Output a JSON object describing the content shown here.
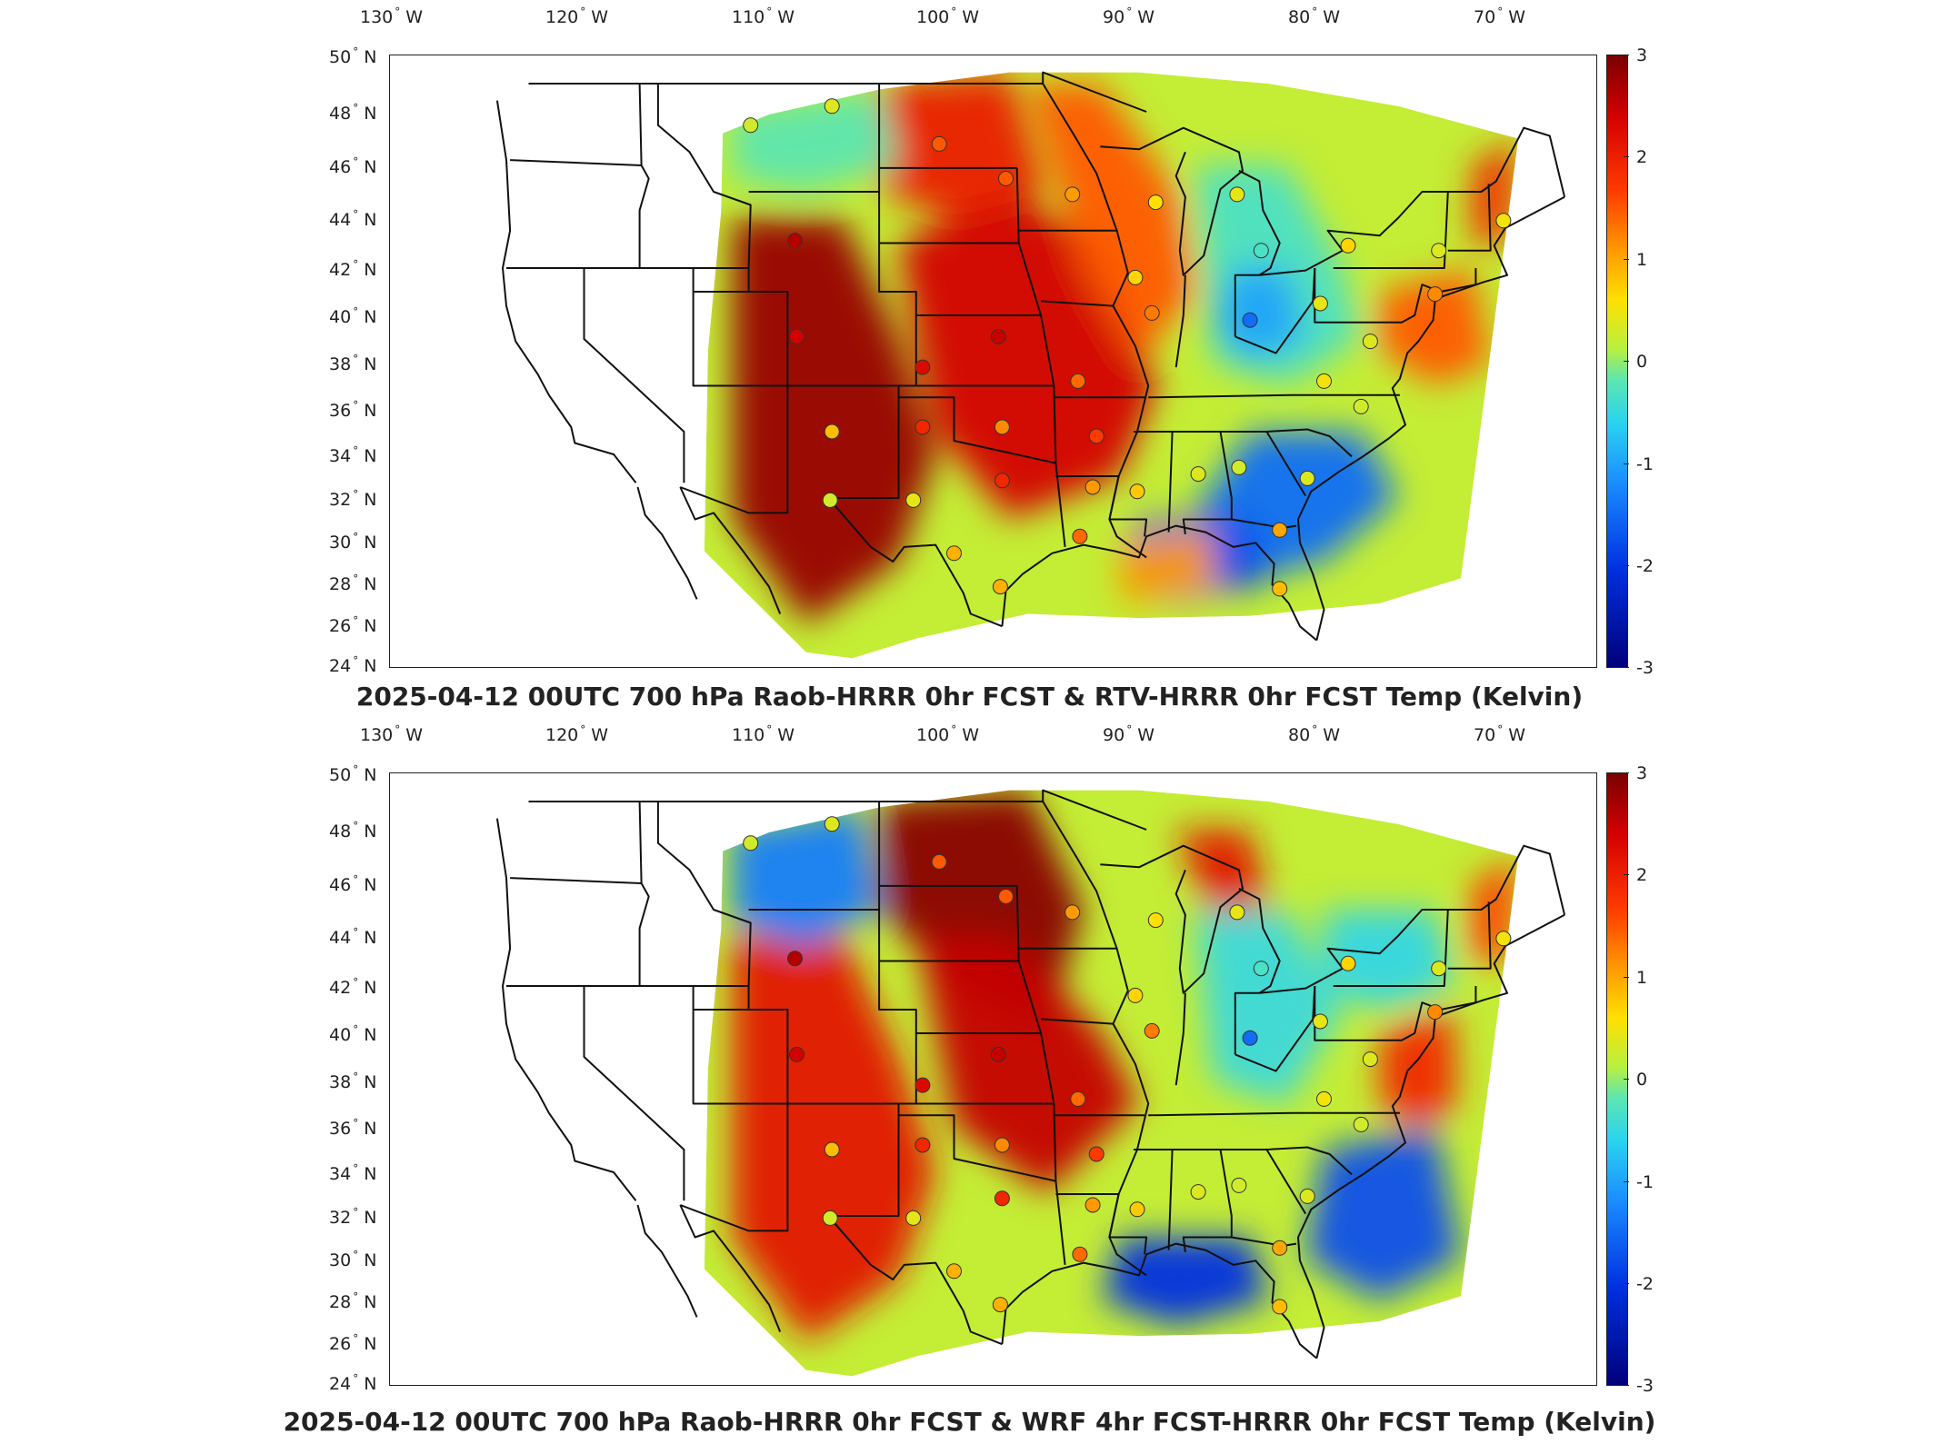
{
  "lon_ticks": [
    "130",
    "120",
    "110",
    "100",
    "90",
    "80",
    "70"
  ],
  "lon_hemisphere": "W",
  "lat_ticks": [
    "50",
    "48",
    "46",
    "44",
    "42",
    "40",
    "38",
    "36",
    "34",
    "32",
    "30",
    "28",
    "26",
    "24"
  ],
  "lat_hemisphere": "N",
  "degree_symbol": "°",
  "colorbar": {
    "ticks": [
      "3",
      "2",
      "1",
      "0",
      "-1",
      "-2",
      "-3"
    ],
    "range": [
      -3,
      3
    ],
    "colormap": "jet",
    "colors": [
      "#00007a",
      "#0030e0",
      "#1a8cff",
      "#2bd3f0",
      "#5de6b0",
      "#b8f040",
      "#ffe000",
      "#ff9a00",
      "#ff3a00",
      "#d40000",
      "#7a0000"
    ]
  },
  "panels": [
    {
      "title": "2025-04-12 00UTC 700 hPa Raob-HRRR 0hr FCST & RTV-HRRR 0hr FCST Temp (Kelvin)",
      "stations": [
        {
          "lon": -111.0,
          "lat": 47.5,
          "v": 0.2
        },
        {
          "lon": -106.6,
          "lat": 48.2,
          "v": 0.3
        },
        {
          "lon": -100.8,
          "lat": 46.8,
          "v": 1.6
        },
        {
          "lon": -97.2,
          "lat": 45.5,
          "v": 1.6
        },
        {
          "lon": -93.6,
          "lat": 44.9,
          "v": 1.2
        },
        {
          "lon": -89.1,
          "lat": 44.6,
          "v": 0.6
        },
        {
          "lon": -84.7,
          "lat": 44.9,
          "v": 0.4
        },
        {
          "lon": -83.4,
          "lat": 42.7,
          "v": -0.8
        },
        {
          "lon": -78.7,
          "lat": 42.9,
          "v": 0.7
        },
        {
          "lon": -73.8,
          "lat": 42.7,
          "v": 0.3
        },
        {
          "lon": -70.3,
          "lat": 43.9,
          "v": 0.5
        },
        {
          "lon": -108.6,
          "lat": 43.1,
          "v": 2.6
        },
        {
          "lon": -108.5,
          "lat": 39.1,
          "v": 2.4
        },
        {
          "lon": -101.7,
          "lat": 37.8,
          "v": 2.3
        },
        {
          "lon": -97.6,
          "lat": 39.1,
          "v": 2.5
        },
        {
          "lon": -93.3,
          "lat": 37.2,
          "v": 1.5
        },
        {
          "lon": -89.3,
          "lat": 40.1,
          "v": 1.4
        },
        {
          "lon": -90.2,
          "lat": 41.6,
          "v": 0.7
        },
        {
          "lon": -84.0,
          "lat": 39.8,
          "v": -2.0
        },
        {
          "lon": -80.2,
          "lat": 40.5,
          "v": 0.4
        },
        {
          "lon": -77.5,
          "lat": 38.9,
          "v": 0.3
        },
        {
          "lon": -74.0,
          "lat": 40.9,
          "v": 1.3
        },
        {
          "lon": -80.0,
          "lat": 37.2,
          "v": 0.5
        },
        {
          "lon": -78.0,
          "lat": 36.1,
          "v": 0.2
        },
        {
          "lon": -106.6,
          "lat": 35.0,
          "v": 0.9
        },
        {
          "lon": -101.7,
          "lat": 35.2,
          "v": 2.0
        },
        {
          "lon": -97.4,
          "lat": 35.2,
          "v": 1.3
        },
        {
          "lon": -92.3,
          "lat": 34.8,
          "v": 1.8
        },
        {
          "lon": -97.4,
          "lat": 32.8,
          "v": 2.0
        },
        {
          "lon": -106.7,
          "lat": 31.9,
          "v": 0.2
        },
        {
          "lon": -102.2,
          "lat": 31.9,
          "v": 0.4
        },
        {
          "lon": -90.1,
          "lat": 32.3,
          "v": 0.8
        },
        {
          "lon": -86.8,
          "lat": 33.1,
          "v": 0.3
        },
        {
          "lon": -84.6,
          "lat": 33.4,
          "v": 0.2
        },
        {
          "lon": -80.9,
          "lat": 32.9,
          "v": 0.3
        },
        {
          "lon": -92.5,
          "lat": 32.5,
          "v": 1.2
        },
        {
          "lon": -93.2,
          "lat": 30.2,
          "v": 1.5
        },
        {
          "lon": -100.0,
          "lat": 29.4,
          "v": 1.0
        },
        {
          "lon": -97.5,
          "lat": 27.8,
          "v": 1.0
        },
        {
          "lon": -82.4,
          "lat": 30.5,
          "v": 1.1
        },
        {
          "lon": -82.4,
          "lat": 27.7,
          "v": 0.9
        }
      ]
    },
    {
      "title": "2025-04-12 00UTC 700 hPa Raob-HRRR 0hr FCST & WRF 4hr FCST-HRRR 0hr FCST Temp (Kelvin)",
      "stations": [
        {
          "lon": -111.0,
          "lat": 47.5,
          "v": 0.2
        },
        {
          "lon": -106.6,
          "lat": 48.2,
          "v": 0.3
        },
        {
          "lon": -100.8,
          "lat": 46.8,
          "v": 1.6
        },
        {
          "lon": -97.2,
          "lat": 45.5,
          "v": 1.6
        },
        {
          "lon": -93.6,
          "lat": 44.9,
          "v": 1.2
        },
        {
          "lon": -89.1,
          "lat": 44.6,
          "v": 0.6
        },
        {
          "lon": -84.7,
          "lat": 44.9,
          "v": 0.4
        },
        {
          "lon": -83.4,
          "lat": 42.7,
          "v": -0.8
        },
        {
          "lon": -78.7,
          "lat": 42.9,
          "v": 0.7
        },
        {
          "lon": -73.8,
          "lat": 42.7,
          "v": 0.3
        },
        {
          "lon": -70.3,
          "lat": 43.9,
          "v": 0.5
        },
        {
          "lon": -108.6,
          "lat": 43.1,
          "v": 2.6
        },
        {
          "lon": -108.5,
          "lat": 39.1,
          "v": 2.4
        },
        {
          "lon": -101.7,
          "lat": 37.8,
          "v": 2.3
        },
        {
          "lon": -97.6,
          "lat": 39.1,
          "v": 2.5
        },
        {
          "lon": -93.3,
          "lat": 37.2,
          "v": 1.5
        },
        {
          "lon": -89.3,
          "lat": 40.1,
          "v": 1.4
        },
        {
          "lon": -90.2,
          "lat": 41.6,
          "v": 0.7
        },
        {
          "lon": -84.0,
          "lat": 39.8,
          "v": -2.0
        },
        {
          "lon": -80.2,
          "lat": 40.5,
          "v": 0.4
        },
        {
          "lon": -77.5,
          "lat": 38.9,
          "v": 0.3
        },
        {
          "lon": -74.0,
          "lat": 40.9,
          "v": 1.3
        },
        {
          "lon": -80.0,
          "lat": 37.2,
          "v": 0.5
        },
        {
          "lon": -78.0,
          "lat": 36.1,
          "v": 0.2
        },
        {
          "lon": -106.6,
          "lat": 35.0,
          "v": 0.9
        },
        {
          "lon": -101.7,
          "lat": 35.2,
          "v": 2.0
        },
        {
          "lon": -97.4,
          "lat": 35.2,
          "v": 1.3
        },
        {
          "lon": -92.3,
          "lat": 34.8,
          "v": 1.8
        },
        {
          "lon": -97.4,
          "lat": 32.8,
          "v": 2.0
        },
        {
          "lon": -106.7,
          "lat": 31.9,
          "v": 0.2
        },
        {
          "lon": -102.2,
          "lat": 31.9,
          "v": 0.4
        },
        {
          "lon": -90.1,
          "lat": 32.3,
          "v": 0.8
        },
        {
          "lon": -86.8,
          "lat": 33.1,
          "v": 0.3
        },
        {
          "lon": -84.6,
          "lat": 33.4,
          "v": 0.2
        },
        {
          "lon": -80.9,
          "lat": 32.9,
          "v": 0.3
        },
        {
          "lon": -92.5,
          "lat": 32.5,
          "v": 1.2
        },
        {
          "lon": -93.2,
          "lat": 30.2,
          "v": 1.5
        },
        {
          "lon": -100.0,
          "lat": 29.4,
          "v": 1.0
        },
        {
          "lon": -97.5,
          "lat": 27.8,
          "v": 1.0
        },
        {
          "lon": -82.4,
          "lat": 30.5,
          "v": 1.1
        },
        {
          "lon": -82.4,
          "lat": 27.7,
          "v": 0.9
        }
      ]
    }
  ]
}
